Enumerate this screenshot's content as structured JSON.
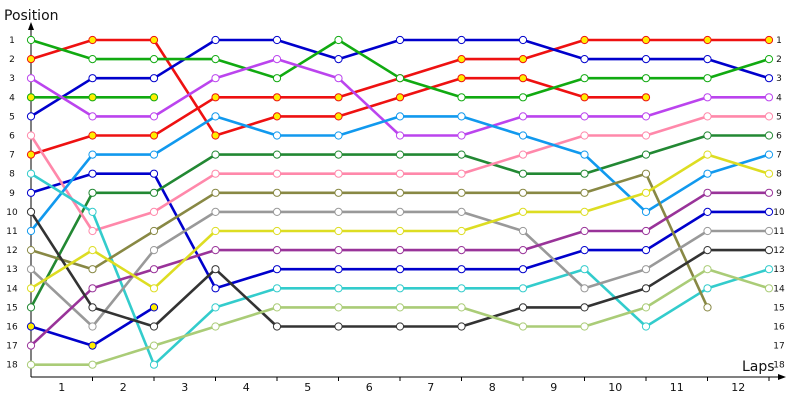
{
  "chart_data": {
    "type": "line",
    "ylabel": "Position",
    "xlabel": "Laps",
    "categories": [
      "1",
      "2",
      "3",
      "4",
      "5",
      "6",
      "7",
      "8",
      "9",
      "10",
      "11",
      "12"
    ],
    "y_ticks": [
      1,
      2,
      3,
      4,
      5,
      6,
      7,
      8,
      9,
      10,
      11,
      12,
      13,
      14,
      15,
      16,
      17,
      18
    ],
    "x_points": [
      0,
      1,
      2,
      3,
      4,
      5,
      6,
      7,
      8,
      9,
      10,
      11,
      12
    ],
    "y_axis_inverted": true,
    "series": [
      {
        "color": "#ee1111",
        "fill": "#ffee00",
        "positions": [
          7,
          6,
          6,
          4,
          4,
          4,
          3,
          2,
          2,
          1,
          1,
          1,
          1
        ]
      },
      {
        "color": "#ee1111",
        "fill": "#ffee00",
        "positions": [
          2,
          1,
          1,
          6,
          5,
          5,
          4,
          3,
          3,
          4,
          4,
          null,
          null
        ]
      },
      {
        "color": "#0000cc",
        "fill": "#ffffff",
        "positions": [
          9,
          8,
          8,
          14,
          13,
          13,
          13,
          13,
          13,
          12,
          12,
          10,
          10
        ]
      },
      {
        "color": "#0000cc",
        "fill": "#ffffff",
        "positions": [
          5,
          3,
          3,
          1,
          1,
          2,
          1,
          1,
          1,
          2,
          2,
          2,
          3
        ]
      },
      {
        "color": "#0000cc",
        "fill": "#ffee00",
        "positions": [
          16,
          17,
          15,
          null,
          null,
          null,
          null,
          null,
          null,
          null,
          null,
          null,
          null
        ]
      },
      {
        "color": "#11aa11",
        "fill": "#ffffff",
        "positions": [
          1,
          2,
          2,
          2,
          3,
          1,
          3,
          4,
          4,
          3,
          3,
          3,
          2
        ]
      },
      {
        "color": "#11aa11",
        "fill": "#ffee00",
        "positions": [
          4,
          4,
          4,
          null,
          null,
          null,
          null,
          null,
          null,
          null,
          null,
          null,
          null
        ]
      },
      {
        "color": "#228833",
        "fill": "#ffffff",
        "positions": [
          15,
          9,
          9,
          7,
          7,
          7,
          7,
          7,
          8,
          8,
          7,
          6,
          6
        ]
      },
      {
        "color": "#bb44ee",
        "fill": "#ffffff",
        "positions": [
          3,
          5,
          5,
          3,
          2,
          3,
          6,
          6,
          5,
          5,
          5,
          4,
          4
        ]
      },
      {
        "color": "#ff88aa",
        "fill": "#ffffff",
        "positions": [
          6,
          11,
          10,
          8,
          8,
          8,
          8,
          8,
          7,
          6,
          6,
          5,
          5
        ]
      },
      {
        "color": "#1199ee",
        "fill": "#ffffff",
        "positions": [
          11,
          7,
          7,
          5,
          6,
          6,
          5,
          5,
          6,
          7,
          10,
          8,
          7
        ]
      },
      {
        "color": "#33cccc",
        "fill": "#ffffff",
        "positions": [
          8,
          10,
          18,
          15,
          14,
          14,
          14,
          14,
          14,
          13,
          16,
          14,
          13
        ]
      },
      {
        "color": "#888844",
        "fill": "#ffffff",
        "positions": [
          12,
          13,
          11,
          9,
          9,
          9,
          9,
          9,
          9,
          9,
          8,
          15,
          null
        ]
      },
      {
        "color": "#999999",
        "fill": "#ffffff",
        "positions": [
          13,
          16,
          12,
          10,
          10,
          10,
          10,
          10,
          11,
          14,
          13,
          11,
          11
        ]
      },
      {
        "color": "#993399",
        "fill": "#ffffff",
        "positions": [
          17,
          14,
          13,
          12,
          12,
          12,
          12,
          12,
          12,
          11,
          11,
          9,
          9
        ]
      },
      {
        "color": "#333333",
        "fill": "#ffffff",
        "positions": [
          10,
          15,
          16,
          13,
          16,
          16,
          16,
          16,
          15,
          15,
          14,
          12,
          12
        ]
      },
      {
        "color": "#dddd22",
        "fill": "#ffffff",
        "positions": [
          14,
          12,
          14,
          11,
          11,
          11,
          11,
          11,
          10,
          10,
          9,
          7,
          8
        ]
      },
      {
        "color": "#aacc77",
        "fill": "#ffffff",
        "positions": [
          18,
          18,
          17,
          16,
          15,
          15,
          15,
          15,
          16,
          16,
          15,
          13,
          14
        ]
      }
    ]
  }
}
